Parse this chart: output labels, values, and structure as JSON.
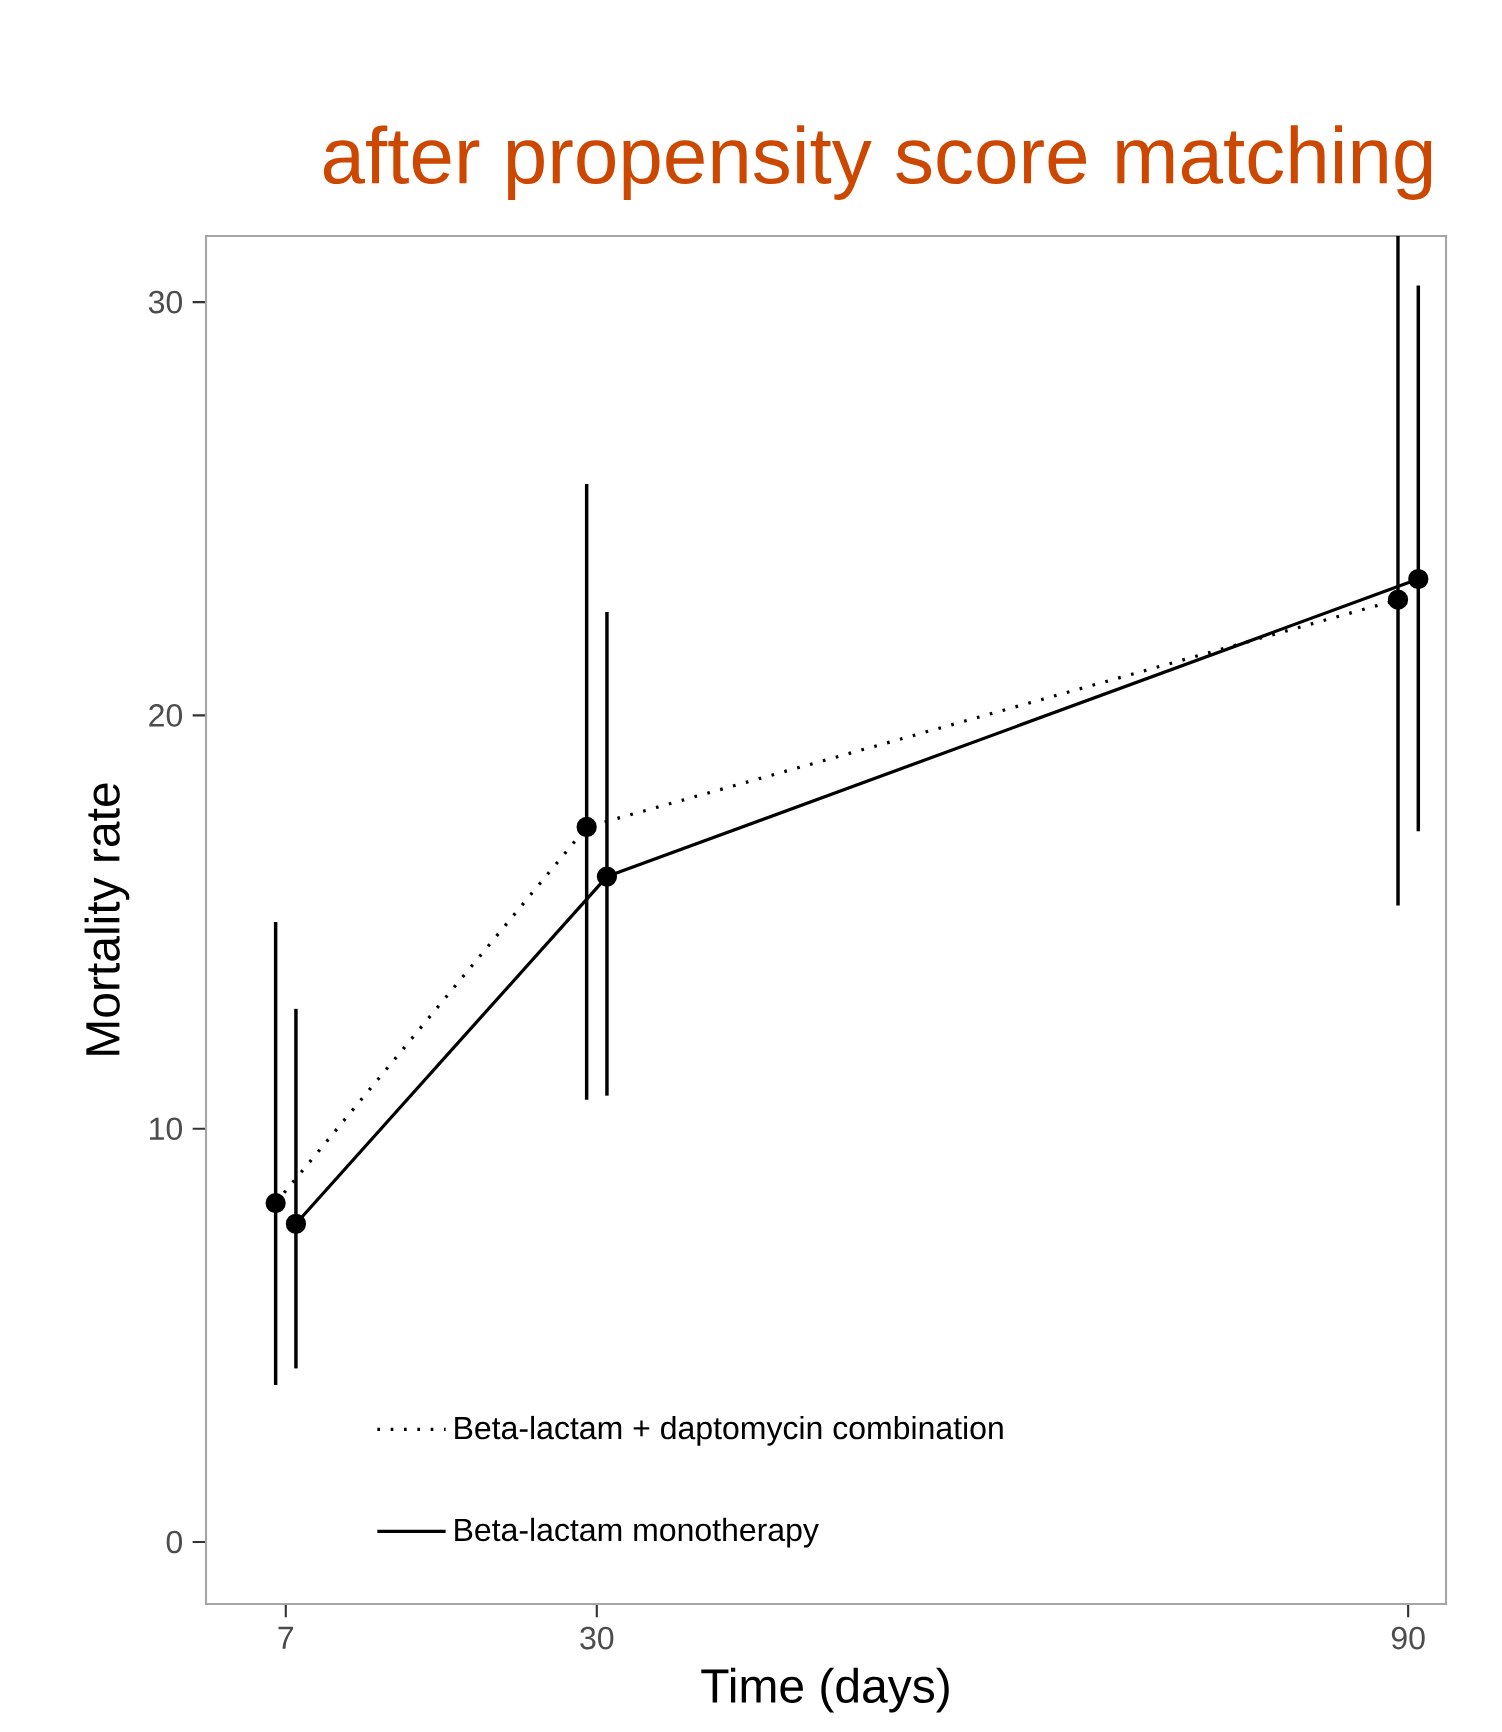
{
  "chart_data": {
    "type": "line",
    "title": "after propensity score matching",
    "xlabel": "Time (days)",
    "ylabel": "Mortality rate",
    "xlim": [
      1.1,
      92.8
    ],
    "ylim": [
      -1.5,
      31.6
    ],
    "xticks": [
      7,
      30,
      90
    ],
    "yticks": [
      0,
      10,
      20,
      30
    ],
    "grid": false,
    "legend": "bottom left",
    "marker": "circle",
    "series": [
      {
        "name": "Beta-lactam + daptomycin combination",
        "color": "#000000",
        "line_style": "dotted",
        "x": [
          6.25,
          29.25,
          89.25
        ],
        "values": [
          8.2,
          17.3,
          22.8
        ],
        "errors": [
          [
            3.8,
            15.0
          ],
          [
            10.7,
            25.6
          ],
          [
            15.4,
            31.7
          ]
        ]
      },
      {
        "name": "Beta-lactam monotherapy",
        "color": "#000000",
        "line_style": "solid",
        "x": [
          7.75,
          30.75,
          90.75
        ],
        "values": [
          7.7,
          16.1,
          23.3
        ],
        "errors": [
          [
            4.2,
            12.9
          ],
          [
            10.8,
            22.5
          ],
          [
            17.2,
            30.4
          ]
        ]
      }
    ]
  }
}
